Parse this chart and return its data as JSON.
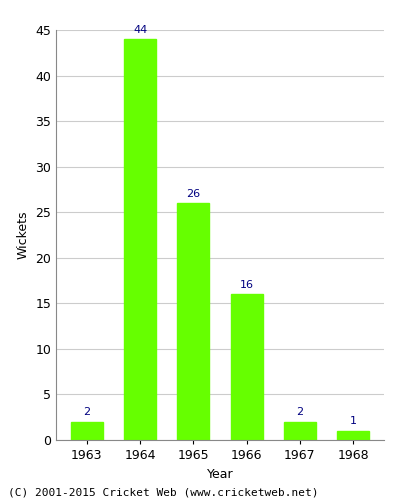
{
  "categories": [
    "1963",
    "1964",
    "1965",
    "1966",
    "1967",
    "1968"
  ],
  "values": [
    2,
    44,
    26,
    16,
    2,
    1
  ],
  "bar_color": "#66ff00",
  "bar_edgecolor": "#66ff00",
  "label_color": "#000080",
  "xlabel": "Year",
  "ylabel": "Wickets",
  "ylim": [
    0,
    45
  ],
  "yticks": [
    0,
    5,
    10,
    15,
    20,
    25,
    30,
    35,
    40,
    45
  ],
  "grid_color": "#cccccc",
  "background_color": "#ffffff",
  "footer": "(C) 2001-2015 Cricket Web (www.cricketweb.net)",
  "label_fontsize": 8,
  "axis_fontsize": 9,
  "footer_fontsize": 8
}
